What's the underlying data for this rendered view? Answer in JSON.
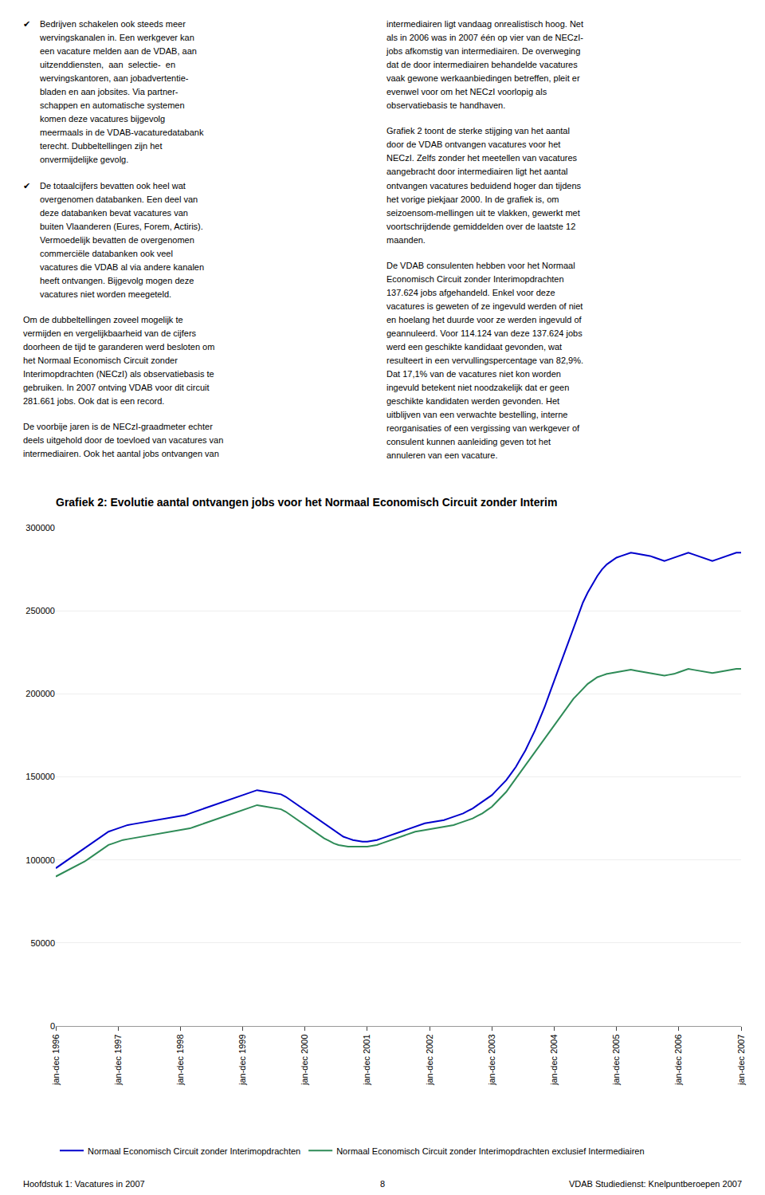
{
  "chart_data": {
    "type": "line",
    "title": "Grafiek 2: Evolutie aantal ontvangen jobs voor het Normaal Economisch Circuit zonder Interim",
    "categories": [
      "jan-dec 1996",
      null,
      null,
      null,
      null,
      null,
      null,
      null,
      null,
      null,
      null,
      null,
      null,
      "jan-dec 1997",
      null,
      null,
      null,
      null,
      null,
      null,
      null,
      null,
      null,
      null,
      null,
      null,
      "jan-dec 1998",
      null,
      null,
      null,
      null,
      null,
      null,
      null,
      null,
      null,
      null,
      null,
      null,
      "jan-dec 1999",
      null,
      null,
      null,
      null,
      null,
      null,
      null,
      null,
      null,
      null,
      null,
      null,
      "jan-dec 2000",
      null,
      null,
      null,
      null,
      null,
      null,
      null,
      null,
      null,
      null,
      null,
      null,
      "jan-dec 2001",
      null,
      null,
      null,
      null,
      null,
      null,
      null,
      null,
      null,
      null,
      null,
      null,
      "jan-dec 2002",
      null,
      null,
      null,
      null,
      null,
      null,
      null,
      null,
      null,
      null,
      null,
      null,
      "jan-dec 2003",
      null,
      null,
      null,
      null,
      null,
      null,
      null,
      null,
      null,
      null,
      null,
      null,
      "jan-dec 2004",
      null,
      null,
      null,
      null,
      null,
      null,
      null,
      null,
      null,
      null,
      null,
      null,
      "jan-dec 2005",
      null,
      null,
      null,
      null,
      null,
      null,
      null,
      null,
      null,
      null,
      null,
      null,
      "jan-dec 2006",
      null,
      null,
      null,
      null,
      null,
      null,
      null,
      null,
      null,
      null,
      null,
      null,
      "jan-dec 2007"
    ],
    "series": [
      {
        "name": "Normaal Economisch Circuit zonder Interimopdrachten",
        "color": "#0000CC",
        "values": [
          95000,
          97000,
          99000,
          101000,
          103000,
          105000,
          107000,
          109000,
          111000,
          113000,
          115000,
          117000,
          118000,
          119000,
          120000,
          121000,
          121500,
          122000,
          122500,
          123000,
          123500,
          124000,
          124500,
          125000,
          125500,
          126000,
          126500,
          127000,
          128000,
          129000,
          130000,
          131000,
          132000,
          133000,
          134000,
          135000,
          136000,
          137000,
          138000,
          139000,
          140000,
          141000,
          142000,
          141500,
          141000,
          140500,
          140000,
          139500,
          138000,
          136000,
          134000,
          132000,
          130000,
          128000,
          126000,
          124000,
          122000,
          120000,
          118000,
          116000,
          114000,
          113000,
          112000,
          111500,
          111000,
          111000,
          111500,
          112000,
          113000,
          114000,
          115000,
          116000,
          117000,
          118000,
          119000,
          120000,
          121000,
          122000,
          122500,
          123000,
          123500,
          124000,
          125000,
          126000,
          127000,
          128000,
          129500,
          131000,
          133000,
          135000,
          137000,
          139000,
          142000,
          145000,
          148000,
          152000,
          156000,
          161000,
          166000,
          172000,
          178000,
          185000,
          192000,
          200000,
          208000,
          216000,
          224000,
          232000,
          240000,
          248000,
          255000,
          261000,
          266000,
          271000,
          275000,
          278000,
          280000,
          282000,
          283000,
          284000,
          285000,
          284500,
          284000,
          283500,
          283000,
          282000,
          281000,
          280000,
          281000,
          282000,
          283000,
          284000,
          285000,
          284000,
          283000,
          282000,
          281000,
          280000,
          281000,
          282000,
          283000,
          284000,
          285000,
          285000
        ]
      },
      {
        "name": "Normaal Economisch Circuit zonder Interimopdrachten exclusief Intermediairen",
        "color": "#2E8B57",
        "values": [
          90000,
          91500,
          93000,
          94500,
          96000,
          97500,
          99000,
          101000,
          103000,
          105000,
          107000,
          109000,
          110000,
          111000,
          112000,
          112500,
          113000,
          113500,
          114000,
          114500,
          115000,
          115500,
          116000,
          116500,
          117000,
          117500,
          118000,
          118500,
          119000,
          120000,
          121000,
          122000,
          123000,
          124000,
          125000,
          126000,
          127000,
          128000,
          129000,
          130000,
          131000,
          132000,
          133000,
          132500,
          132000,
          131500,
          131000,
          130500,
          129000,
          127000,
          125000,
          123000,
          121000,
          119000,
          117000,
          115000,
          113000,
          111500,
          110000,
          109000,
          108500,
          108000,
          108000,
          108000,
          108000,
          108000,
          108500,
          109000,
          110000,
          111000,
          112000,
          113000,
          114000,
          115000,
          116000,
          117000,
          117500,
          118000,
          118500,
          119000,
          119500,
          120000,
          120500,
          121000,
          122000,
          123000,
          124000,
          125000,
          126500,
          128000,
          130000,
          132000,
          135000,
          138000,
          141000,
          145000,
          149000,
          153000,
          157000,
          161000,
          165000,
          169000,
          173000,
          177000,
          181000,
          185000,
          189000,
          193000,
          197000,
          200000,
          203000,
          206000,
          208000,
          210000,
          211000,
          212000,
          212500,
          213000,
          213500,
          214000,
          214500,
          214000,
          213500,
          213000,
          212500,
          212000,
          211500,
          211000,
          211500,
          212000,
          213000,
          214000,
          215000,
          214500,
          214000,
          213500,
          213000,
          212500,
          213000,
          213500,
          214000,
          214500,
          215000,
          215000
        ]
      }
    ],
    "ylim": [
      0,
      300000
    ],
    "yticks": [
      0,
      50000,
      100000,
      150000,
      200000,
      250000,
      300000
    ],
    "grid": true,
    "legend": "bottom left",
    "annotations": {
      "left_column": [
        {
          "bullet": "✔",
          "text": "Bedrijven schakelen ook steeds meer\nwervingskanalen in. Een werkgever kan\neen vacature melden aan de VDAB, aan\nuitzenddiensten,  aan  selectie-  en\nwervingskantoren, aan jobadvertentie-\nbladen en aan jobsites. Via partner-\nschappen en automatische systemen\nkomen deze vacatures bijgevolg\nmeermaals in de VDAB-vacaturedatabank\nterecht. Dubbeltellingen zijn het\nonvermijdelijke gevolg."
        },
        {
          "bullet": "✔",
          "text": "De totaalcijfers bevatten ook heel wat\novergenomen databanken. Een deel van\ndeze databanken bevat vacatures van\nbuiten Vlaanderen (Eures, Forem, Actiris).\nVermoedelijk bevatten de overgenomen\ncommerciële databanken ook veel\nvacatures die VDAB al via andere kanalen\nheeft ontvangen. Bijgevolg mogen deze\nvacatures niet worden meegeteld."
        },
        {
          "text": "Om de dubbeltellingen zoveel mogelijk te\nvermijden en vergelijkbaarheid van de cijfers\ndoorheen de tijd te garanderen werd besloten om\nhet Normaal Economisch Circuit zonder\nInterimopdrachten (NECzI) als observatiebasis te\ngebruiken. In 2007 ontving VDAB voor dit circuit\n281.661 jobs. Ook dat is een record."
        },
        {
          "text": "De voorbije jaren is de NECzI-graadmeter echter\ndeels uitgehold door de toevloed van vacatures van\nintermediairen. Ook het aantal jobs ontvangen van"
        }
      ],
      "right_column": [
        "intermediairen ligt vandaag onrealistisch hoog. Net\nals in 2006 was in 2007 één op vier van de NECzI-\njobs afkomstig van intermediairen. De overweging\ndat de door intermediairen behandelde vacatures\nvaak gewone werkaanbiedingen betreffen, pleit er\nevenwel voor om het NECzI voorlopig als\nobservatiebasis te handhaven.",
        "Grafiek 2 toont de sterke stijging van het aantal\ndoor de VDAB ontvangen vacatures voor het\nNECzI. Zelfs zonder het meetellen van vacatures\naangebracht door intermediairen ligt het aantal\nontvangen vacatures beduidend hoger dan tijdens\nhet vorige piekjaar 2000. In de grafiek is, om\nseizoensom-mellingen uit te vlakken, gewerkt met\nvoortschrijdende gemiddelden over de laatste 12\nmaanden.",
        "De VDAB consulenten hebben voor het Normaal\nEconomisch Circuit zonder Interimopdrachten\n137.624 jobs afgehandeld. Enkel voor deze\nvacatures is geweten of ze ingevuld werden of niet\nen hoelang het duurde voor ze werden ingevuld of\ngeannuleerd. Voor 114.124 van deze 137.624 jobs\nwerd een geschikte kandidaat gevonden, wat\nresulteert in een vervullingspercentage van 82,9%.\nDat 17,1% van de vacatures niet kon worden\ningevuld betekent niet noodzakelijk dat er geen\ngeschikte kandidaten werden gevonden. Het\nuitblijven van een verwachte bestelling, interne\nreorganisaties of een vergissing van werkgever of\nconsulent kunnen aanleiding geven tot het\nannuleren van een vacature."
      ],
      "footer": {
        "left": "Hoofdstuk 1: Vacatures in 2007",
        "center": "8",
        "right": "VDAB Studiedienst: Knelpuntberoepen 2007"
      }
    }
  }
}
